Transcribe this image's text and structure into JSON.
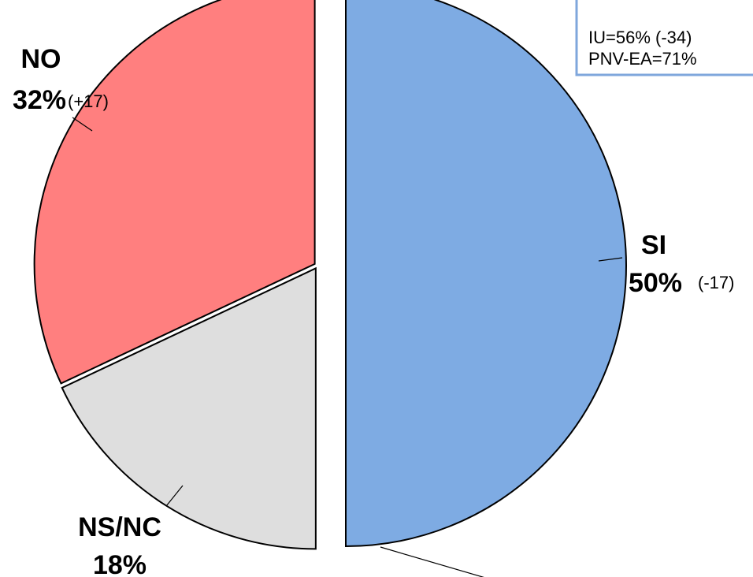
{
  "chart_data": {
    "type": "pie",
    "slices": [
      {
        "label": "SI",
        "value": 50,
        "value_label": "50%",
        "change": "(-17)",
        "color": "#7eabe3"
      },
      {
        "label": "NS/NC",
        "value": 18,
        "value_label": "18%",
        "change": "",
        "color": "#dedede"
      },
      {
        "label": "NO",
        "value": 32,
        "value_label": "32%",
        "change": "(+17)",
        "color": "#ff7f7f"
      }
    ],
    "exploded": [
      "SI"
    ],
    "annotation_box": {
      "lines": [
        "IU=56% (-34)",
        "PNV-EA=71%"
      ],
      "border_color": "#7fa7dc"
    }
  }
}
